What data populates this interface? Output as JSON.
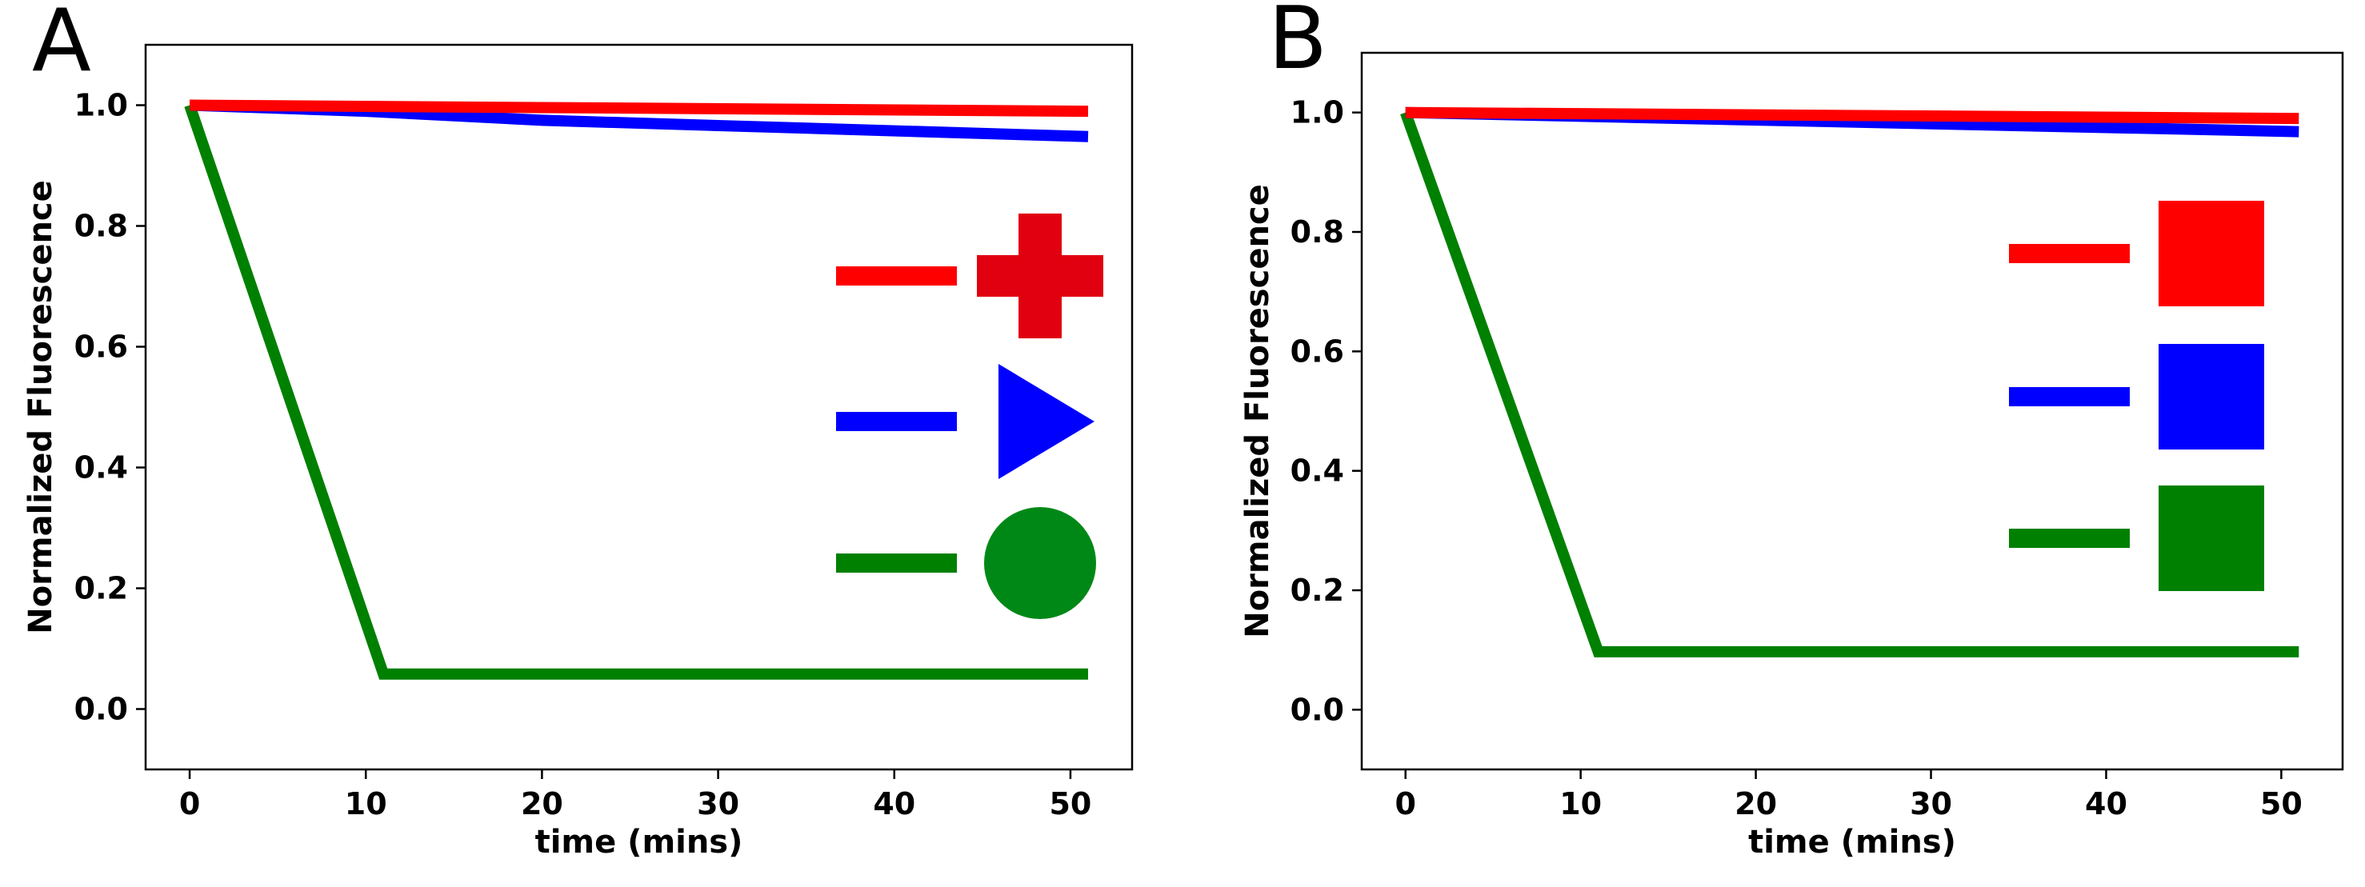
{
  "chart_data": [
    {
      "type": "line",
      "panel_label": "A",
      "xlabel": "time (mins)",
      "ylabel": "Normalized Fluorescence",
      "xlim": [
        -2.5,
        53.5
      ],
      "ylim": [
        -0.1,
        1.1
      ],
      "xticks": [
        0,
        10,
        20,
        30,
        40,
        50
      ],
      "yticks": [
        0.0,
        0.2,
        0.4,
        0.6,
        0.8,
        1.0
      ],
      "xtick_labels": [
        "0",
        "10",
        "20",
        "30",
        "40",
        "50"
      ],
      "ytick_labels": [
        "0.0",
        "0.2",
        "0.4",
        "0.6",
        "0.8",
        "1.0"
      ],
      "legend_placement": "center-right",
      "series": [
        {
          "color": "#ff0000",
          "legend_icon": "cross-icon",
          "icon_color": "#e00010",
          "x": [
            0,
            51
          ],
          "y": [
            1.0,
            0.99
          ]
        },
        {
          "color": "#0000ff",
          "legend_icon": "triangle-icon",
          "icon_color": "#0000ff",
          "x": [
            0,
            10,
            20,
            51
          ],
          "y": [
            1.0,
            0.99,
            0.975,
            0.948
          ]
        },
        {
          "color": "#008000",
          "legend_icon": "circle-icon",
          "icon_color": "#008817",
          "x": [
            0,
            11,
            51
          ],
          "y": [
            1.0,
            0.058,
            0.058
          ]
        }
      ]
    },
    {
      "type": "line",
      "panel_label": "B",
      "xlabel": "time (mins)",
      "ylabel": "Normalized Fluorescence",
      "xlim": [
        -2.5,
        53.5
      ],
      "ylim": [
        -0.1,
        1.1
      ],
      "xticks": [
        0,
        10,
        20,
        30,
        40,
        50
      ],
      "yticks": [
        0.0,
        0.2,
        0.4,
        0.6,
        0.8,
        1.0
      ],
      "xtick_labels": [
        "0",
        "10",
        "20",
        "30",
        "40",
        "50"
      ],
      "ytick_labels": [
        "0.0",
        "0.2",
        "0.4",
        "0.6",
        "0.8",
        "1.0"
      ],
      "legend_placement": "center-right",
      "series": [
        {
          "color": "#ff0000",
          "legend_icon": "square-icon",
          "icon_color": "#ff0000",
          "x": [
            0,
            51
          ],
          "y": [
            1.0,
            0.99
          ]
        },
        {
          "color": "#0000ff",
          "legend_icon": "square-icon",
          "icon_color": "#0000ff",
          "x": [
            0,
            51
          ],
          "y": [
            1.0,
            0.968
          ]
        },
        {
          "color": "#008000",
          "legend_icon": "square-icon",
          "icon_color": "#008000",
          "x": [
            0,
            11,
            51
          ],
          "y": [
            1.0,
            0.097,
            0.097
          ]
        }
      ]
    }
  ]
}
